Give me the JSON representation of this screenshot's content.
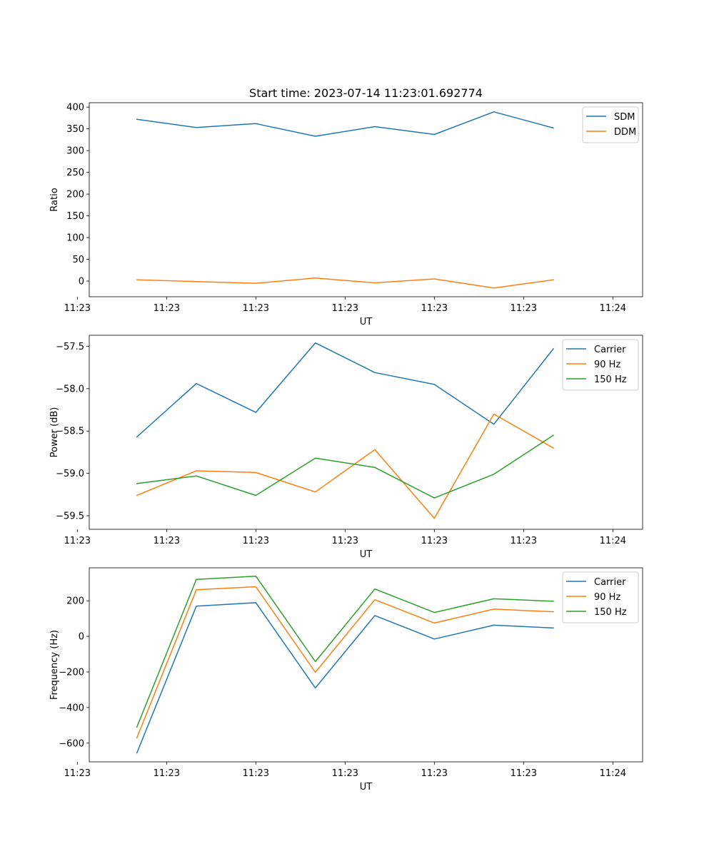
{
  "chart_data": [
    {
      "type": "line",
      "title": "Start time: 2023-07-14 11:23:01.692774",
      "xlabel": "UT",
      "ylabel": "Ratio",
      "x": [
        1,
        2,
        3,
        4,
        5,
        6,
        7,
        8
      ],
      "xlim": [
        0.2,
        9.5
      ],
      "x_ticks": [
        {
          "value": 0,
          "label": "11:23"
        },
        {
          "value": 1.5,
          "label": "11:23"
        },
        {
          "value": 3,
          "label": "11:23"
        },
        {
          "value": 4.5,
          "label": "11:23"
        },
        {
          "value": 6,
          "label": "11:23"
        },
        {
          "value": 7.5,
          "label": "11:23"
        },
        {
          "value": 9,
          "label": "11:24"
        }
      ],
      "ylim": [
        -36,
        410
      ],
      "y_ticks": [
        {
          "value": 0,
          "label": "0"
        },
        {
          "value": 50,
          "label": "50"
        },
        {
          "value": 100,
          "label": "100"
        },
        {
          "value": 150,
          "label": "150"
        },
        {
          "value": 200,
          "label": "200"
        },
        {
          "value": 250,
          "label": "250"
        },
        {
          "value": 300,
          "label": "300"
        },
        {
          "value": 350,
          "label": "350"
        },
        {
          "value": 400,
          "label": "400"
        }
      ],
      "legend_position": "upper right",
      "series": [
        {
          "name": "SDM",
          "color": "#1f77b4",
          "values": [
            372,
            353,
            362,
            333,
            355,
            337,
            389,
            352
          ]
        },
        {
          "name": "DDM",
          "color": "#ff7f0e",
          "values": [
            3,
            -1,
            -5,
            7,
            -4,
            5,
            -16,
            3
          ]
        }
      ]
    },
    {
      "type": "line",
      "title": "",
      "xlabel": "UT",
      "ylabel": "Power (dB)",
      "x": [
        1,
        2,
        3,
        4,
        5,
        6,
        7,
        8
      ],
      "xlim": [
        0.2,
        9.5
      ],
      "x_ticks": [
        {
          "value": 0,
          "label": "11:23"
        },
        {
          "value": 1.5,
          "label": "11:23"
        },
        {
          "value": 3,
          "label": "11:23"
        },
        {
          "value": 4.5,
          "label": "11:23"
        },
        {
          "value": 6,
          "label": "11:23"
        },
        {
          "value": 7.5,
          "label": "11:23"
        },
        {
          "value": 9,
          "label": "11:24"
        }
      ],
      "ylim": [
        -59.66,
        -57.37
      ],
      "y_ticks": [
        {
          "value": -59.5,
          "label": "−59.5"
        },
        {
          "value": -59.0,
          "label": "−59.0"
        },
        {
          "value": -58.5,
          "label": "−58.5"
        },
        {
          "value": -58.0,
          "label": "−58.0"
        },
        {
          "value": -57.5,
          "label": "−57.5"
        }
      ],
      "legend_position": "upper right",
      "series": [
        {
          "name": "Carrier",
          "color": "#1f77b4",
          "values": [
            -58.57,
            -57.94,
            -58.28,
            -57.46,
            -57.81,
            -57.95,
            -58.42,
            -57.53
          ]
        },
        {
          "name": "90 Hz",
          "color": "#ff7f0e",
          "values": [
            -59.26,
            -58.97,
            -58.99,
            -59.22,
            -58.72,
            -59.53,
            -58.3,
            -58.7
          ]
        },
        {
          "name": "150 Hz",
          "color": "#2ca02c",
          "values": [
            -59.12,
            -59.03,
            -59.26,
            -58.82,
            -58.93,
            -59.29,
            -59.01,
            -58.55
          ]
        }
      ]
    },
    {
      "type": "line",
      "title": "",
      "xlabel": "UT",
      "ylabel": "Frequency (Hz)",
      "x": [
        1,
        2,
        3,
        4,
        5,
        6,
        7,
        8
      ],
      "xlim": [
        0.2,
        9.5
      ],
      "x_ticks": [
        {
          "value": 0,
          "label": "11:23"
        },
        {
          "value": 1.5,
          "label": "11:23"
        },
        {
          "value": 3,
          "label": "11:23"
        },
        {
          "value": 4.5,
          "label": "11:23"
        },
        {
          "value": 6,
          "label": "11:23"
        },
        {
          "value": 7.5,
          "label": "11:23"
        },
        {
          "value": 9,
          "label": "11:24"
        }
      ],
      "ylim": [
        -705,
        385
      ],
      "y_ticks": [
        {
          "value": -600,
          "label": "−600"
        },
        {
          "value": -400,
          "label": "−400"
        },
        {
          "value": -200,
          "label": "−200"
        },
        {
          "value": 0,
          "label": "0"
        },
        {
          "value": 200,
          "label": "200"
        }
      ],
      "legend_position": "upper right",
      "series": [
        {
          "name": "Carrier",
          "color": "#1f77b4",
          "values": [
            -655,
            170,
            189,
            -290,
            117,
            -15,
            63,
            47
          ]
        },
        {
          "name": "90 Hz",
          "color": "#ff7f0e",
          "values": [
            -570,
            262,
            279,
            -202,
            206,
            75,
            153,
            138
          ]
        },
        {
          "name": "150 Hz",
          "color": "#2ca02c",
          "values": [
            -510,
            320,
            338,
            -142,
            266,
            134,
            211,
            197
          ]
        }
      ]
    }
  ]
}
